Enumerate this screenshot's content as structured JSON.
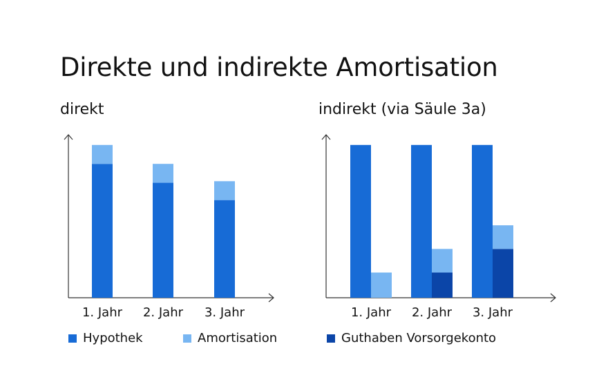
{
  "title": "Direkte und indirekte Amortisation",
  "colors": {
    "hypothek": "#176BD6",
    "amortisation": "#78B6F2",
    "guthaben": "#0B45A8",
    "axis": "#333333"
  },
  "legend": {
    "hypothek": "Hypothek",
    "amortisation": "Amortisation",
    "guthaben": "Guthaben Vorsorgekonto"
  },
  "chart_data": [
    {
      "type": "bar",
      "stacked": true,
      "subtitle": "direkt",
      "categories": [
        "1. Jahr",
        "2. Jahr",
        "3. Jahr"
      ],
      "ylim": [
        0,
        100
      ],
      "series": [
        {
          "name": "Hypothek",
          "color_key": "hypothek",
          "values": [
            85,
            73,
            62
          ]
        },
        {
          "name": "Amortisation",
          "color_key": "amortisation",
          "values": [
            12,
            12,
            12
          ]
        }
      ]
    },
    {
      "type": "bar",
      "grouped": true,
      "subtitle": "indirekt (via Säule 3a)",
      "categories": [
        "1. Jahr",
        "2. Jahr",
        "3. Jahr"
      ],
      "ylim": [
        0,
        100
      ],
      "series": [
        {
          "name": "Hypothek",
          "color_key": "hypothek",
          "values": [
            97,
            97,
            97
          ]
        },
        {
          "name": "Guthaben Vorsorgekonto",
          "color_key": "guthaben",
          "values": [
            0,
            16,
            31
          ]
        },
        {
          "name": "Amortisation",
          "color_key": "amortisation",
          "values": [
            16,
            15,
            15
          ]
        }
      ]
    }
  ]
}
